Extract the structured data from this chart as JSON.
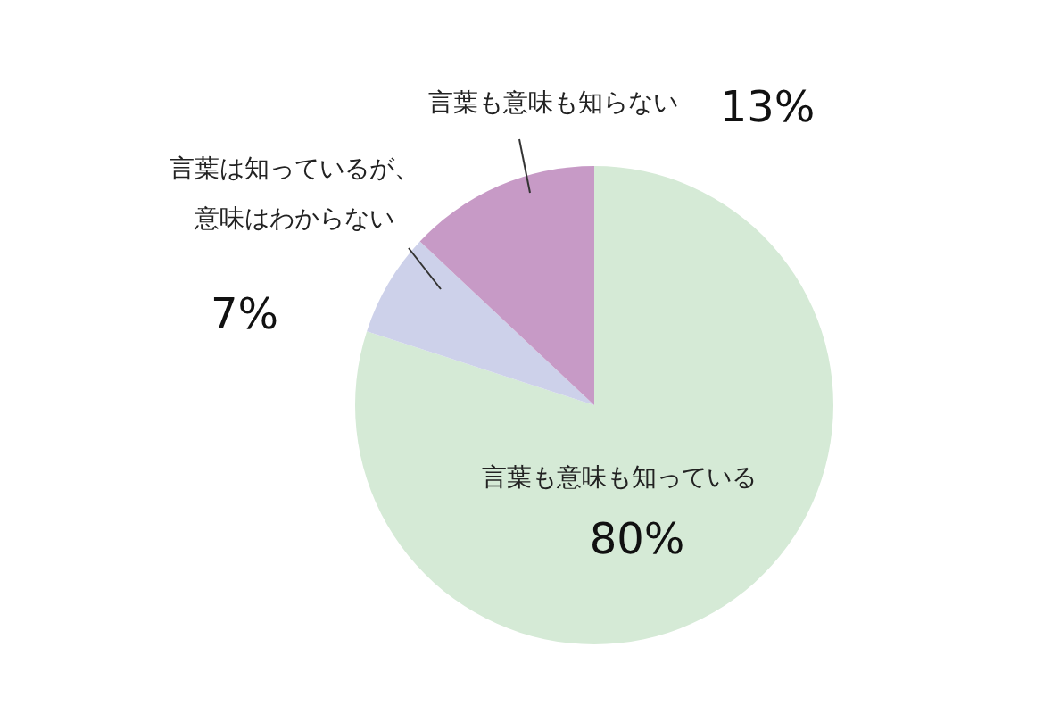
{
  "chart_data": {
    "type": "pie",
    "categories": [
      "言葉も意味も知っている",
      "言葉は知っているが、意味はわからない",
      "言葉も意味も知らない"
    ],
    "values": [
      80,
      7,
      13
    ],
    "colors": [
      "#d5ead6",
      "#cdd1ea",
      "#c79ac6"
    ],
    "value_labels": [
      "80%",
      "7%",
      "13%"
    ],
    "legend": false
  }
}
